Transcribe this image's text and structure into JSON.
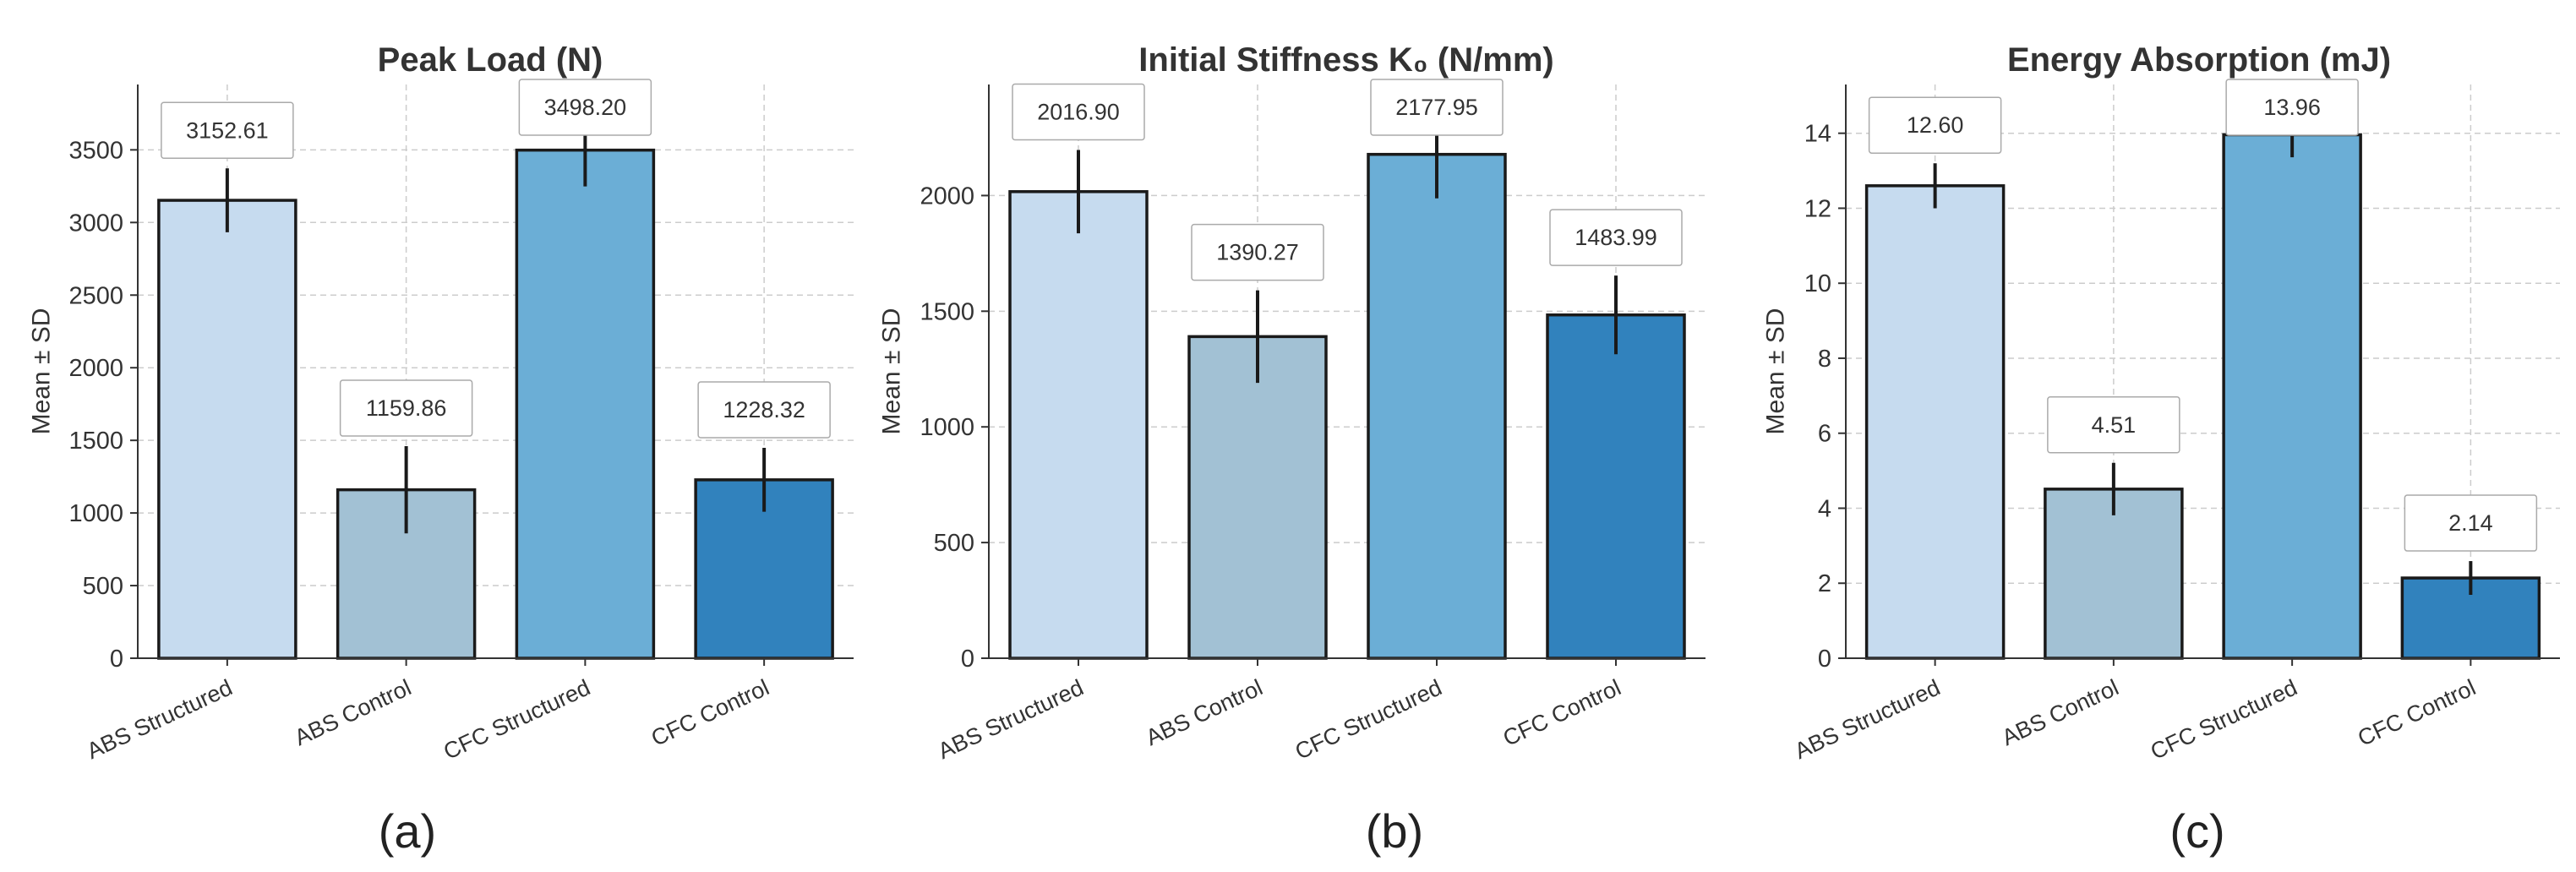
{
  "chart_data": [
    {
      "type": "bar",
      "title": "Peak Load (N)",
      "ylabel": "Mean ± SD",
      "xlabel": "",
      "categories": [
        "ABS Structured",
        "ABS Control",
        "CFC Structured",
        "CFC Control"
      ],
      "values": [
        3152.61,
        1159.86,
        3498.2,
        1228.32
      ],
      "value_labels": [
        "3152.61",
        "1159.86",
        "3498.20",
        "1228.32"
      ],
      "errors": [
        220,
        300,
        250,
        220
      ],
      "ylim": [
        0,
        3950
      ],
      "yticks": [
        0,
        500,
        1000,
        1500,
        2000,
        2500,
        3000,
        3500
      ],
      "grid": true,
      "colors": [
        "#c6dbef",
        "#a2c1d4",
        "#6baed6",
        "#3182bd"
      ],
      "panel_label": "(a)"
    },
    {
      "type": "bar",
      "title": "Initial Stiffness K₀ (N/mm)",
      "ylabel": "Mean ± SD",
      "xlabel": "",
      "categories": [
        "ABS Structured",
        "ABS Control",
        "CFC Structured",
        "CFC Control"
      ],
      "values": [
        2016.9,
        1390.27,
        2177.95,
        1483.99
      ],
      "value_labels": [
        "2016.90",
        "1390.27",
        "2177.95",
        "1483.99"
      ],
      "errors": [
        180,
        200,
        190,
        170
      ],
      "ylim": [
        0,
        2480
      ],
      "yticks": [
        0,
        500,
        1000,
        1500,
        2000
      ],
      "grid": true,
      "colors": [
        "#c6dbef",
        "#a2c1d4",
        "#6baed6",
        "#3182bd"
      ],
      "panel_label": "(b)"
    },
    {
      "type": "bar",
      "title": "Energy Absorption (mJ)",
      "ylabel": "Mean ± SD",
      "xlabel": "",
      "categories": [
        "ABS Structured",
        "ABS Control",
        "CFC Structured",
        "CFC Control"
      ],
      "values": [
        12.6,
        4.51,
        13.96,
        2.14
      ],
      "value_labels": [
        "12.60",
        "4.51",
        "13.96",
        "2.14"
      ],
      "errors": [
        0.6,
        0.7,
        0.6,
        0.45
      ],
      "ylim": [
        0,
        15.3
      ],
      "yticks": [
        0,
        2,
        4,
        6,
        8,
        10,
        12,
        14
      ],
      "grid": true,
      "colors": [
        "#c6dbef",
        "#a2c1d4",
        "#6baed6",
        "#3182bd"
      ],
      "panel_label": "(c)"
    }
  ]
}
